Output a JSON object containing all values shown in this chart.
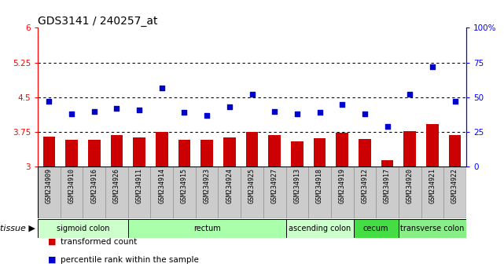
{
  "title": "GDS3141 / 240257_at",
  "samples": [
    "GSM234909",
    "GSM234910",
    "GSM234916",
    "GSM234926",
    "GSM234911",
    "GSM234914",
    "GSM234915",
    "GSM234923",
    "GSM234924",
    "GSM234925",
    "GSM234927",
    "GSM234913",
    "GSM234918",
    "GSM234919",
    "GSM234912",
    "GSM234917",
    "GSM234920",
    "GSM234921",
    "GSM234922"
  ],
  "bar_values": [
    3.65,
    3.58,
    3.58,
    3.68,
    3.63,
    3.76,
    3.58,
    3.58,
    3.63,
    3.75,
    3.68,
    3.55,
    3.62,
    3.73,
    3.6,
    3.14,
    3.77,
    3.92,
    3.68
  ],
  "dot_values": [
    47,
    38,
    40,
    42,
    41,
    57,
    39,
    37,
    43,
    52,
    40,
    38,
    39,
    45,
    38,
    29,
    52,
    72,
    47
  ],
  "bar_color": "#cc0000",
  "dot_color": "#0000cc",
  "ylim_left": [
    3.0,
    6.0
  ],
  "ylim_right": [
    0,
    100
  ],
  "yticks_left": [
    3.0,
    3.75,
    4.5,
    5.25,
    6.0
  ],
  "ytick_labels_left": [
    "3",
    "3.75",
    "4.5",
    "5.25",
    "6"
  ],
  "yticks_right": [
    0,
    25,
    50,
    75,
    100
  ],
  "ytick_labels_right": [
    "0",
    "25",
    "50",
    "75",
    "100%"
  ],
  "hlines": [
    3.75,
    4.5,
    5.25
  ],
  "tissue_groups": [
    {
      "label": "sigmoid colon",
      "start": 0,
      "end": 4,
      "color": "#ccffcc"
    },
    {
      "label": "rectum",
      "start": 4,
      "end": 11,
      "color": "#aaffaa"
    },
    {
      "label": "ascending colon",
      "start": 11,
      "end": 14,
      "color": "#ccffcc"
    },
    {
      "label": "cecum",
      "start": 14,
      "end": 16,
      "color": "#44dd44"
    },
    {
      "label": "transverse colon",
      "start": 16,
      "end": 19,
      "color": "#88ee88"
    }
  ],
  "legend_bar_label": "transformed count",
  "legend_dot_label": "percentile rank within the sample",
  "title_fontsize": 10,
  "tick_fontsize": 7.5,
  "label_fontsize": 7,
  "tissue_fontsize": 7
}
